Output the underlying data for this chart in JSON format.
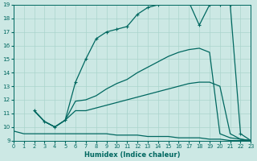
{
  "xlabel": "Humidex (Indice chaleur)",
  "bg_color": "#cce8e4",
  "grid_color": "#aad4cc",
  "line_color": "#006860",
  "xlim": [
    0,
    23
  ],
  "ylim": [
    9,
    19
  ],
  "series": [
    {
      "x": [
        0,
        1,
        2,
        3,
        4,
        5,
        6,
        7,
        8,
        9,
        10,
        11,
        12,
        13,
        14,
        15,
        16,
        17,
        18,
        19,
        20,
        21,
        22,
        23
      ],
      "y": [
        9.7,
        9.5,
        9.5,
        9.5,
        9.5,
        9.5,
        9.5,
        9.5,
        9.5,
        9.5,
        9.4,
        9.4,
        9.4,
        9.3,
        9.3,
        9.3,
        9.2,
        9.2,
        9.2,
        9.1,
        9.1,
        9.0,
        9.0,
        9.0
      ],
      "marker": false,
      "lw": 0.9
    },
    {
      "x": [
        2,
        3,
        4,
        5,
        6,
        7,
        8,
        9,
        10,
        11,
        12,
        13,
        14,
        15,
        16,
        17,
        18,
        19,
        20,
        21,
        22,
        23
      ],
      "y": [
        11.2,
        10.4,
        10.0,
        10.5,
        11.2,
        11.2,
        11.4,
        11.6,
        11.8,
        12.0,
        12.2,
        12.4,
        12.6,
        12.8,
        13.0,
        13.2,
        13.3,
        13.3,
        13.0,
        9.5,
        9.1,
        9.0
      ],
      "marker": false,
      "lw": 0.9
    },
    {
      "x": [
        2,
        3,
        4,
        5,
        6,
        7,
        8,
        9,
        10,
        11,
        12,
        13,
        14,
        15,
        16,
        17,
        18,
        19,
        20,
        21,
        22,
        23
      ],
      "y": [
        11.2,
        10.4,
        10.0,
        10.5,
        11.9,
        12.0,
        12.3,
        12.8,
        13.2,
        13.5,
        14.0,
        14.4,
        14.8,
        15.2,
        15.5,
        15.7,
        15.8,
        15.5,
        9.5,
        9.2,
        9.1,
        9.0
      ],
      "marker": false,
      "lw": 0.9
    },
    {
      "x": [
        2,
        3,
        4,
        5,
        6,
        7,
        8,
        9,
        10,
        11,
        12,
        13,
        14,
        15,
        16,
        17,
        18,
        19,
        20,
        21,
        22,
        23
      ],
      "y": [
        11.2,
        10.4,
        10.0,
        10.5,
        13.3,
        15.0,
        16.5,
        17.0,
        17.2,
        17.4,
        18.3,
        18.8,
        19.0,
        19.2,
        19.2,
        19.2,
        17.5,
        19.0,
        19.0,
        19.0,
        9.5,
        9.0
      ],
      "marker": true,
      "lw": 0.9
    }
  ]
}
